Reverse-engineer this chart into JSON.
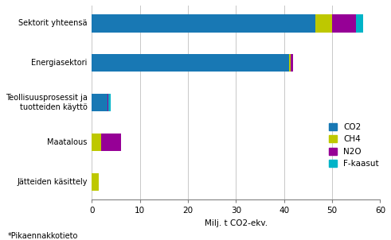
{
  "categories": [
    "Jätteiden käsittely",
    "Maatalous",
    "Teollisuusprosessit ja\ntuotteiden käyttö",
    "Energiasektori",
    "Sektorit yhteensä"
  ],
  "CO2": [
    0.0,
    0.0,
    3.2,
    41.0,
    46.5
  ],
  "CH4": [
    1.5,
    2.0,
    0.0,
    0.3,
    3.5
  ],
  "N2O": [
    0.0,
    4.0,
    0.15,
    0.5,
    5.0
  ],
  "F_kaasut": [
    0.0,
    0.0,
    0.5,
    0.0,
    1.5
  ],
  "colors": {
    "CO2": "#1878b4",
    "CH4": "#bec800",
    "N2O": "#960096",
    "F_kaasut": "#00b4c8"
  },
  "xlabel": "Milj. t CO2-ekv.",
  "xlim": [
    0,
    60
  ],
  "xticks": [
    0,
    10,
    20,
    30,
    40,
    50,
    60
  ],
  "footnote": "*Pikaennakkotieto",
  "bar_height": 0.45,
  "background_color": "#ffffff",
  "grid_color": "#c8c8c8"
}
